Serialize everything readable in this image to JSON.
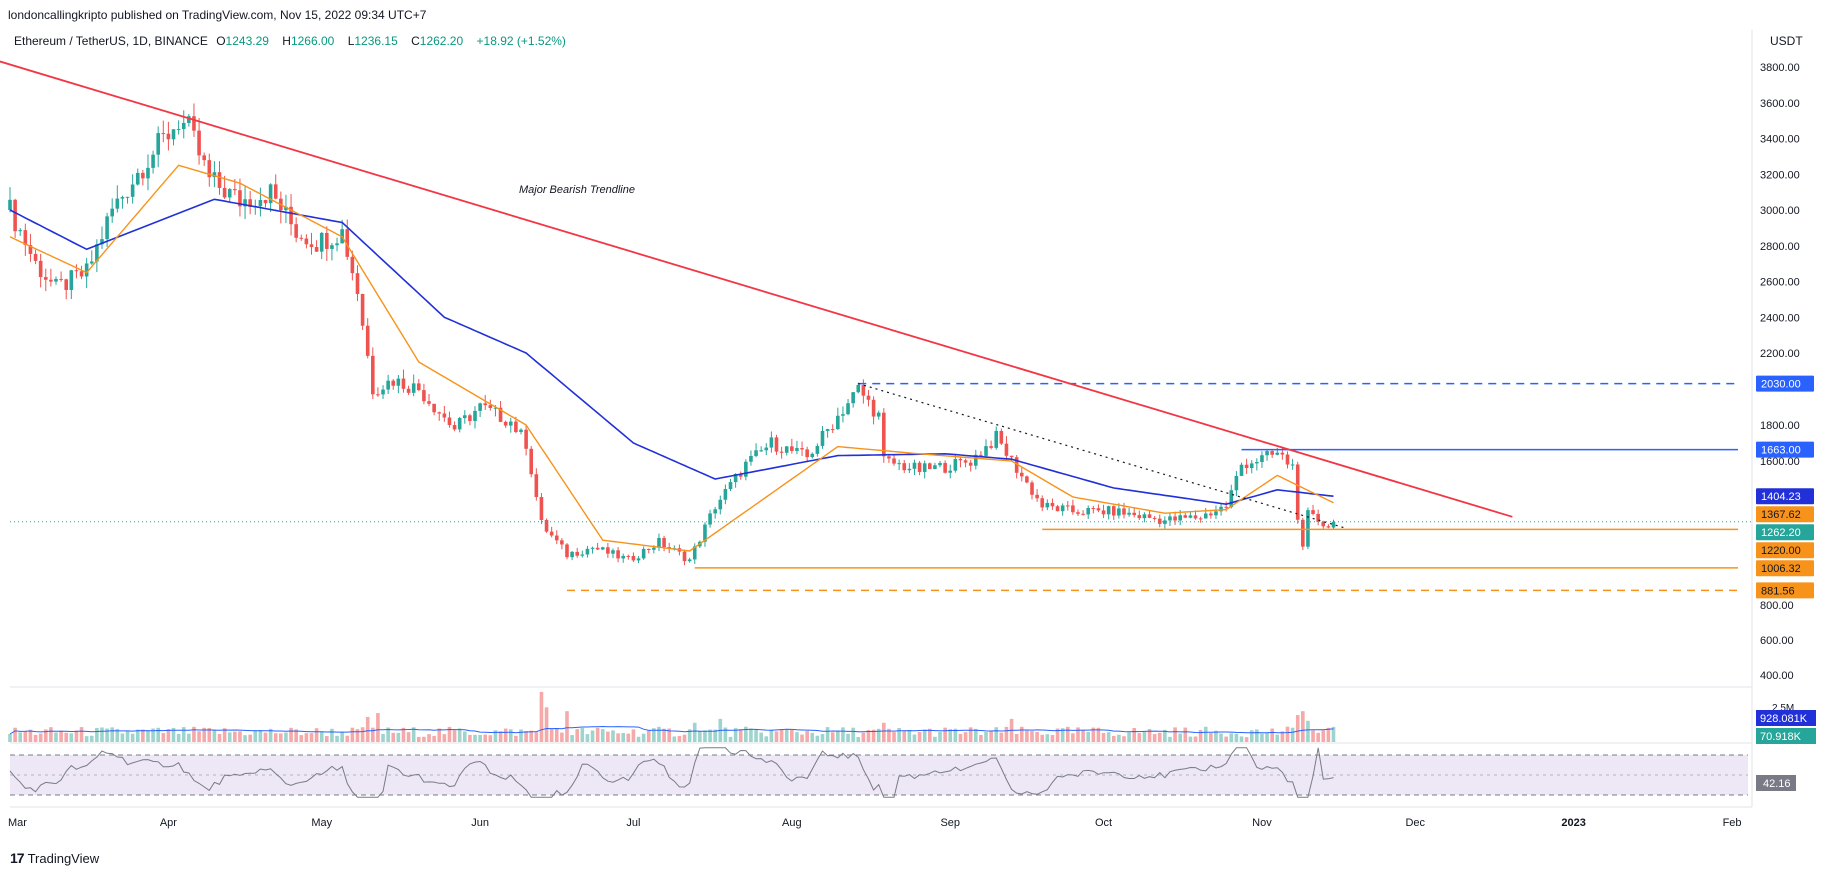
{
  "header": {
    "publisher": "londoncallingkripto published on TradingView.com, Nov 15, 2022 09:34 UTC+7",
    "symbol": "Ethereum / TetherUS, 1D, BINANCE",
    "open_label": "O",
    "open": "1243.29",
    "high_label": "H",
    "high": "1266.00",
    "low_label": "L",
    "low": "1236.15",
    "close_label": "C",
    "close": "1262.20",
    "change": "+18.92 (+1.52%)",
    "currency": "USDT"
  },
  "footer": {
    "brand": "TradingView",
    "logo_icon": "tradingview-logo-icon"
  },
  "colors": {
    "up": "#26a69a",
    "down": "#ef5350",
    "trendline": "#f23645",
    "ema_fast": "#f7931a",
    "ema_slow": "#2130d9",
    "support": "#f7931a",
    "resistance": "#2962ff",
    "rsi_line": "#787b86",
    "rsi_band": "#ede7f6"
  },
  "chart_data": {
    "type": "candlestick",
    "symbol": "Ethereum / TetherUS",
    "timeframe": "1D",
    "exchange": "BINANCE",
    "yaxis": {
      "ticks": [
        "3800.00",
        "3600.00",
        "3400.00",
        "3200.00",
        "3000.00",
        "2800.00",
        "2600.00",
        "2400.00",
        "2200.00",
        "1800.00",
        "1600.00",
        "800.00",
        "600.00",
        "400.00"
      ]
    },
    "xaxis": {
      "ticks": [
        "Mar",
        "Apr",
        "May",
        "Jun",
        "Jul",
        "Aug",
        "Sep",
        "Oct",
        "Nov",
        "Dec",
        "2023",
        "Feb"
      ]
    },
    "price_path": [
      [
        "2022-03-01",
        3000
      ],
      [
        "2022-03-06",
        2700
      ],
      [
        "2022-03-10",
        2560
      ],
      [
        "2022-03-16",
        2650
      ],
      [
        "2022-03-21",
        3000
      ],
      [
        "2022-03-27",
        3250
      ],
      [
        "2022-04-03",
        3500
      ],
      [
        "2022-04-05",
        3450
      ],
      [
        "2022-04-09",
        3170
      ],
      [
        "2022-04-15",
        3050
      ],
      [
        "2022-04-21",
        3100
      ],
      [
        "2022-04-26",
        2880
      ],
      [
        "2022-04-30",
        2820
      ],
      [
        "2022-05-05",
        2880
      ],
      [
        "2022-05-08",
        2550
      ],
      [
        "2022-05-11",
        2000
      ],
      [
        "2022-05-15",
        2050
      ],
      [
        "2022-05-20",
        2000
      ],
      [
        "2022-05-27",
        1780
      ],
      [
        "2022-06-01",
        1900
      ],
      [
        "2022-06-07",
        1820
      ],
      [
        "2022-06-10",
        1700
      ],
      [
        "2022-06-13",
        1250
      ],
      [
        "2022-06-18",
        1080
      ],
      [
        "2022-06-23",
        1120
      ],
      [
        "2022-06-30",
        1050
      ],
      [
        "2022-07-06",
        1150
      ],
      [
        "2022-07-12",
        1050
      ],
      [
        "2022-07-17",
        1350
      ],
      [
        "2022-07-23",
        1580
      ],
      [
        "2022-07-28",
        1700
      ],
      [
        "2022-08-04",
        1620
      ],
      [
        "2022-08-10",
        1850
      ],
      [
        "2022-08-14",
        2000
      ],
      [
        "2022-08-18",
        1850
      ],
      [
        "2022-08-19",
        1600
      ],
      [
        "2022-08-26",
        1550
      ],
      [
        "2022-08-31",
        1570
      ],
      [
        "2022-09-05",
        1600
      ],
      [
        "2022-09-10",
        1730
      ],
      [
        "2022-09-13",
        1600
      ],
      [
        "2022-09-19",
        1350
      ],
      [
        "2022-09-25",
        1320
      ],
      [
        "2022-10-03",
        1320
      ],
      [
        "2022-10-13",
        1270
      ],
      [
        "2022-10-20",
        1290
      ],
      [
        "2022-10-25",
        1350
      ],
      [
        "2022-10-28",
        1580
      ],
      [
        "2022-11-04",
        1640
      ],
      [
        "2022-11-07",
        1570
      ],
      [
        "2022-11-08",
        1300
      ],
      [
        "2022-11-09",
        1100
      ],
      [
        "2022-11-10",
        1300
      ],
      [
        "2022-11-14",
        1240
      ],
      [
        "2022-11-15",
        1262.2
      ]
    ],
    "ema_fast_path": [
      [
        "2022-03-01",
        2850
      ],
      [
        "2022-03-16",
        2650
      ],
      [
        "2022-04-03",
        3250
      ],
      [
        "2022-04-15",
        3150
      ],
      [
        "2022-05-05",
        2850
      ],
      [
        "2022-05-20",
        2150
      ],
      [
        "2022-06-10",
        1800
      ],
      [
        "2022-06-25",
        1160
      ],
      [
        "2022-07-12",
        1100
      ],
      [
        "2022-08-10",
        1680
      ],
      [
        "2022-08-26",
        1640
      ],
      [
        "2022-09-13",
        1600
      ],
      [
        "2022-09-25",
        1400
      ],
      [
        "2022-10-13",
        1310
      ],
      [
        "2022-10-25",
        1330
      ],
      [
        "2022-11-04",
        1520
      ],
      [
        "2022-11-15",
        1367.62
      ]
    ],
    "ema_slow_path": [
      [
        "2022-03-01",
        3000
      ],
      [
        "2022-03-16",
        2780
      ],
      [
        "2022-04-10",
        3060
      ],
      [
        "2022-05-05",
        2930
      ],
      [
        "2022-05-25",
        2400
      ],
      [
        "2022-06-10",
        2200
      ],
      [
        "2022-07-01",
        1700
      ],
      [
        "2022-07-17",
        1500
      ],
      [
        "2022-08-10",
        1630
      ],
      [
        "2022-08-31",
        1640
      ],
      [
        "2022-09-13",
        1610
      ],
      [
        "2022-10-03",
        1450
      ],
      [
        "2022-10-25",
        1360
      ],
      [
        "2022-11-04",
        1440
      ],
      [
        "2022-11-15",
        1404.23
      ]
    ],
    "trendline": {
      "label": "Major Bearish Trendline",
      "from": [
        "2022-02-19",
        3900
      ],
      "to": [
        "2022-12-20",
        1290
      ]
    },
    "secondary_trend": {
      "from": [
        "2022-08-14",
        2030
      ],
      "to": [
        "2022-11-17",
        1230
      ]
    },
    "levels": [
      {
        "label": "2030.00",
        "value": 2030,
        "from": "2022-08-14",
        "style": "dashed",
        "color": "#2962ff"
      },
      {
        "label": "1663.00",
        "value": 1663,
        "from": "2022-10-28",
        "style": "solid",
        "color": "#2962ff"
      },
      {
        "label": "1220.00",
        "value": 1220,
        "from": "2022-09-19",
        "style": "solid",
        "color": "#f7931a"
      },
      {
        "label": "1006.32",
        "value": 1006.32,
        "from": "2022-07-13",
        "style": "solid",
        "color": "#f7931a"
      },
      {
        "label": "881.56",
        "value": 881.56,
        "from": "2022-06-18",
        "style": "dashed",
        "color": "#f7931a"
      }
    ],
    "price_badges": [
      {
        "label": "2030.00",
        "value": 2030,
        "bg": "#2962ff",
        "fg": "#ffffff"
      },
      {
        "label": "1663.00",
        "value": 1663,
        "bg": "#2962ff",
        "fg": "#ffffff"
      },
      {
        "label": "1404.23",
        "value": 1404.23,
        "bg": "#2130d9",
        "fg": "#ffffff"
      },
      {
        "label": "1367.62",
        "value": 1367.62,
        "bg": "#f7931a",
        "fg": "#131722"
      },
      {
        "label": "1262.20",
        "value": 1262.2,
        "bg": "#26a69a",
        "fg": "#ffffff"
      },
      {
        "label": "1220.00",
        "value": 1220,
        "bg": "#f7931a",
        "fg": "#131722"
      },
      {
        "label": "1006.32",
        "value": 1006.32,
        "bg": "#f7931a",
        "fg": "#131722"
      },
      {
        "label": "881.56",
        "value": 881.56,
        "bg": "#f7931a",
        "fg": "#131722"
      }
    ],
    "volume": {
      "axis_label": "2.5M",
      "badges": [
        {
          "label": "928.081K",
          "bg": "#2130d9",
          "fg": "#ffffff"
        },
        {
          "label": "70.918K",
          "bg": "#26a69a",
          "fg": "#ffffff"
        }
      ],
      "spikes": [
        [
          "2022-06-13",
          2.6
        ],
        [
          "2022-06-14",
          1.8
        ],
        [
          "2022-06-18",
          1.6
        ],
        [
          "2022-05-10",
          1.3
        ],
        [
          "2022-05-12",
          1.5
        ],
        [
          "2022-07-13",
          1.0
        ],
        [
          "2022-07-18",
          1.2
        ],
        [
          "2022-08-19",
          1.0
        ],
        [
          "2022-09-13",
          1.2
        ],
        [
          "2022-11-08",
          1.4
        ],
        [
          "2022-11-09",
          1.6
        ],
        [
          "2022-11-10",
          1.1
        ]
      ]
    },
    "rsi": {
      "value": "42.16",
      "upper": 70,
      "lower": 30
    }
  }
}
